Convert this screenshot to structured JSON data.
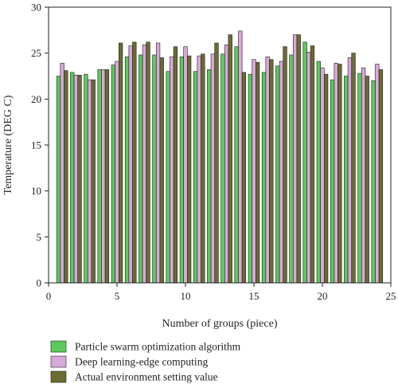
{
  "chart_data": {
    "type": "bar",
    "xlabel": "Number of groups (piece)",
    "ylabel": "Temperature (DEG C)",
    "xlim": [
      0,
      25
    ],
    "ylim": [
      0,
      30
    ],
    "xticks": [
      "0",
      "5",
      "10",
      "15",
      "20",
      "25"
    ],
    "yticks": [
      "0",
      "5",
      "10",
      "15",
      "20",
      "25",
      "30"
    ],
    "grid": false,
    "legend_position": "bottom",
    "x": [
      1,
      2,
      3,
      4,
      5,
      6,
      7,
      8,
      9,
      10,
      11,
      12,
      13,
      14,
      15,
      16,
      17,
      18,
      19,
      20,
      21,
      22,
      23,
      24
    ],
    "series": [
      {
        "name": "Particle swarm optimization algorithm",
        "color": "#5cc95c",
        "values": [
          22.5,
          22.9,
          22.7,
          23.2,
          23.7,
          24.6,
          24.8,
          24.8,
          23.0,
          24.6,
          23.0,
          23.2,
          24.9,
          25.7,
          22.7,
          22.9,
          23.6,
          24.8,
          26.2,
          24.1,
          22.1,
          22.5,
          22.8,
          22.0
        ]
      },
      {
        "name": "Deep learning-edge computing",
        "color": "#d8a9d8",
        "values": [
          23.9,
          22.6,
          22.1,
          23.2,
          24.1,
          25.8,
          25.9,
          26.1,
          24.6,
          25.7,
          24.7,
          24.9,
          25.9,
          27.4,
          24.3,
          24.6,
          24.1,
          27.0,
          25.1,
          23.4,
          23.9,
          24.5,
          23.4,
          23.8
        ]
      },
      {
        "name": "Actual environment setting value",
        "color": "#6b6b32",
        "values": [
          23.1,
          22.6,
          22.1,
          23.2,
          26.1,
          26.2,
          26.2,
          24.5,
          25.7,
          24.7,
          24.9,
          26.1,
          27.0,
          22.9,
          24.0,
          24.3,
          25.7,
          27.0,
          25.8,
          22.7,
          23.8,
          25.0,
          22.5,
          23.2
        ]
      }
    ]
  }
}
